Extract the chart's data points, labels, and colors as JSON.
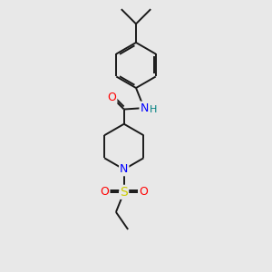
{
  "background_color": "#e8e8e8",
  "bond_color": "#1a1a1a",
  "atom_colors": {
    "O": "#ff0000",
    "N": "#0000ff",
    "S": "#cccc00",
    "H": "#008080",
    "C": "#000000"
  },
  "figsize": [
    3.0,
    3.0
  ],
  "dpi": 100,
  "lw": 1.4
}
